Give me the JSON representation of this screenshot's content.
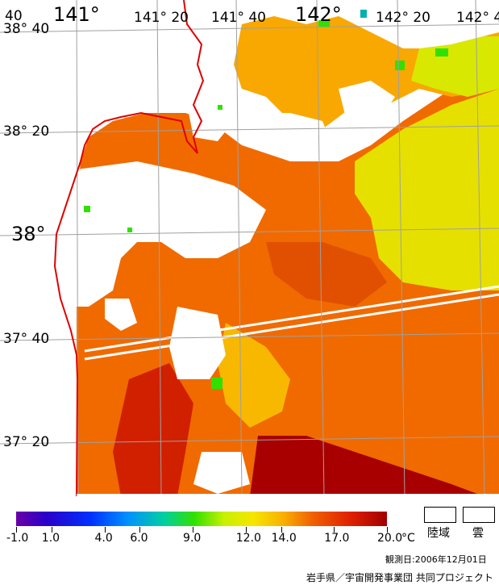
{
  "map": {
    "lon_labels": {
      "l1": "141°",
      "l2": "141° 20",
      "l3": "141° 40",
      "l4": "142°",
      "l5": "142° 20",
      "l6": "142° 4"
    },
    "lat_labels": {
      "t40": "40",
      "l1": "38° 40",
      "l2": "38° 20",
      "l3": "38°",
      "l4": "37° 40",
      "l5": "37° 20"
    },
    "colors": {
      "land_border": "#e00000",
      "grid": "#a0a0a0",
      "sst_warm": "#f06a00",
      "sst_hot": "#a80000",
      "sst_mid": "#f8a800",
      "sst_cool": "#e6e000",
      "green": "#30e000"
    }
  },
  "legend": {
    "ticks": [
      "-1.0",
      "1.0",
      "4.0",
      "6.0",
      "9.0",
      "12.0",
      "14.0",
      "17.0",
      "20.0"
    ],
    "unit": "°C",
    "land_label": "陸域",
    "cloud_label": "雲"
  },
  "footer": {
    "date": "観測日:2006年12月01日",
    "credit": "岩手県／宇宙開発事業団 共同プロジェクト"
  }
}
